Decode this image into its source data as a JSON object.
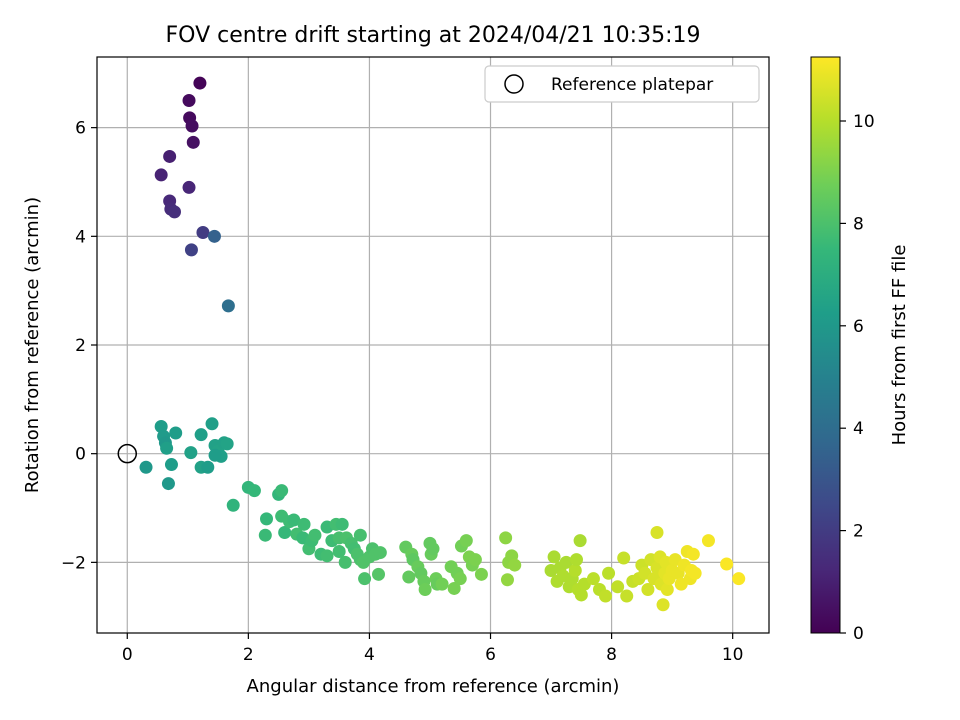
{
  "chart_data": {
    "type": "scatter",
    "title": "FOV centre drift starting at 2024/04/21 10:35:19",
    "xlabel": "Angular distance from reference (arcmin)",
    "ylabel": "Rotation from reference (arcmin)",
    "xlim": [
      -0.5,
      10.6
    ],
    "ylim": [
      -3.3,
      7.3
    ],
    "xticks": [
      0,
      2,
      4,
      6,
      8,
      10
    ],
    "xtick_labels": [
      "0",
      "2",
      "4",
      "6",
      "8",
      "10"
    ],
    "yticks": [
      -2,
      0,
      2,
      4,
      6
    ],
    "ytick_labels": [
      "−2",
      "0",
      "2",
      "4",
      "6"
    ],
    "grid": true,
    "legend": {
      "placement": "top-right",
      "entries": [
        "Reference platepar"
      ]
    },
    "reference_point": {
      "x": 0,
      "y": 0,
      "label": "Reference platepar"
    },
    "colorbar": {
      "label": "Hours from first FF file",
      "range": [
        0,
        11.25
      ],
      "ticks": [
        0,
        2,
        4,
        6,
        8,
        10
      ],
      "tick_labels": [
        "0",
        "2",
        "4",
        "6",
        "8",
        "10"
      ],
      "colormap": "viridis",
      "colors": [
        "#440154",
        "#482878",
        "#3e4989",
        "#31688e",
        "#26828e",
        "#1f9e89",
        "#35b779",
        "#6ece58",
        "#b5de2b",
        "#fde725"
      ]
    },
    "points": [
      [
        1.2,
        6.82,
        0.1
      ],
      [
        1.02,
        6.5,
        0.3
      ],
      [
        1.03,
        6.18,
        0.3
      ],
      [
        1.07,
        6.03,
        0.4
      ],
      [
        1.09,
        5.73,
        0.5
      ],
      [
        0.7,
        5.47,
        1.0
      ],
      [
        0.56,
        5.13,
        1.1
      ],
      [
        1.02,
        4.9,
        1.2
      ],
      [
        0.7,
        4.65,
        1.3
      ],
      [
        0.72,
        4.5,
        1.4
      ],
      [
        0.78,
        4.45,
        1.5
      ],
      [
        1.25,
        4.07,
        2.0
      ],
      [
        1.44,
        4.0,
        3.5
      ],
      [
        1.06,
        3.75,
        2.2
      ],
      [
        1.67,
        2.72,
        4.1
      ],
      [
        0.56,
        0.5,
        6.2
      ],
      [
        0.6,
        0.32,
        6.1
      ],
      [
        0.63,
        0.2,
        6.0
      ],
      [
        0.65,
        0.1,
        6.3
      ],
      [
        0.8,
        0.38,
        6.2
      ],
      [
        0.68,
        -0.55,
        6.0
      ],
      [
        0.73,
        -0.2,
        6.2
      ],
      [
        0.31,
        -0.25,
        6.0
      ],
      [
        1.05,
        0.02,
        6.4
      ],
      [
        1.22,
        0.35,
        6.3
      ],
      [
        1.22,
        -0.25,
        6.4
      ],
      [
        1.33,
        -0.25,
        6.2
      ],
      [
        1.4,
        0.55,
        6.3
      ],
      [
        1.45,
        0.15,
        6.4
      ],
      [
        1.5,
        0.05,
        6.5
      ],
      [
        1.55,
        -0.05,
        6.3
      ],
      [
        1.6,
        0.2,
        6.4
      ],
      [
        1.65,
        0.18,
        6.5
      ],
      [
        1.45,
        -0.03,
        6.2
      ],
      [
        1.75,
        -0.95,
        7.3
      ],
      [
        2.0,
        -0.62,
        7.4
      ],
      [
        2.1,
        -0.68,
        7.5
      ],
      [
        2.3,
        -1.2,
        7.5
      ],
      [
        2.28,
        -1.5,
        7.6
      ],
      [
        2.5,
        -0.75,
        7.4
      ],
      [
        2.55,
        -0.68,
        7.6
      ],
      [
        2.55,
        -1.15,
        7.7
      ],
      [
        2.6,
        -1.45,
        7.5
      ],
      [
        2.68,
        -1.25,
        7.7
      ],
      [
        2.75,
        -1.22,
        7.6
      ],
      [
        2.8,
        -1.48,
        7.8
      ],
      [
        2.9,
        -1.55,
        7.6
      ],
      [
        2.92,
        -1.3,
        7.7
      ],
      [
        3.0,
        -1.75,
        7.8
      ],
      [
        3.05,
        -1.6,
        7.7
      ],
      [
        3.1,
        -1.5,
        7.8
      ],
      [
        3.2,
        -1.85,
        7.7
      ],
      [
        3.3,
        -1.88,
        7.8
      ],
      [
        3.3,
        -1.35,
        7.6
      ],
      [
        3.38,
        -1.6,
        7.7
      ],
      [
        3.45,
        -1.3,
        7.8
      ],
      [
        3.5,
        -1.55,
        7.9
      ],
      [
        3.55,
        -1.3,
        7.7
      ],
      [
        3.5,
        -1.8,
        7.8
      ],
      [
        3.6,
        -2.0,
        7.9
      ],
      [
        3.62,
        -1.55,
        8.0
      ],
      [
        3.7,
        -1.65,
        7.9
      ],
      [
        3.75,
        -1.75,
        7.8
      ],
      [
        3.8,
        -1.85,
        8.0
      ],
      [
        3.85,
        -1.5,
        7.9
      ],
      [
        3.85,
        -1.95,
        8.0
      ],
      [
        3.9,
        -2.0,
        8.1
      ],
      [
        3.92,
        -2.3,
        8.0
      ],
      [
        4.0,
        -1.9,
        8.1
      ],
      [
        4.05,
        -1.75,
        8.0
      ],
      [
        4.1,
        -1.85,
        8.1
      ],
      [
        4.15,
        -2.22,
        8.2
      ],
      [
        4.18,
        -1.82,
        8.1
      ],
      [
        4.6,
        -1.72,
        8.5
      ],
      [
        4.65,
        -2.27,
        8.5
      ],
      [
        4.7,
        -1.85,
        8.6
      ],
      [
        4.72,
        -1.95,
        8.4
      ],
      [
        4.8,
        -2.08,
        8.6
      ],
      [
        4.85,
        -2.2,
        8.5
      ],
      [
        4.9,
        -2.35,
        8.6
      ],
      [
        4.92,
        -2.5,
        8.7
      ],
      [
        5.0,
        -1.65,
        8.5
      ],
      [
        5.02,
        -1.85,
        8.6
      ],
      [
        5.05,
        -1.75,
        8.5
      ],
      [
        5.1,
        -2.3,
        8.7
      ],
      [
        5.12,
        -2.4,
        8.6
      ],
      [
        5.2,
        -2.4,
        8.8
      ],
      [
        5.35,
        -2.08,
        8.8
      ],
      [
        5.4,
        -2.48,
        8.9
      ],
      [
        5.45,
        -2.2,
        8.8
      ],
      [
        5.5,
        -2.3,
        8.9
      ],
      [
        5.52,
        -1.7,
        8.8
      ],
      [
        5.6,
        -1.6,
        8.9
      ],
      [
        5.65,
        -1.9,
        9.0
      ],
      [
        5.7,
        -2.05,
        8.9
      ],
      [
        5.75,
        -1.95,
        9.0
      ],
      [
        5.85,
        -2.22,
        9.0
      ],
      [
        6.25,
        -1.55,
        9.3
      ],
      [
        6.3,
        -2.0,
        9.3
      ],
      [
        6.28,
        -2.32,
        9.4
      ],
      [
        6.35,
        -1.88,
        9.3
      ],
      [
        6.4,
        -2.05,
        9.4
      ],
      [
        7.0,
        -2.15,
        9.8
      ],
      [
        7.05,
        -1.9,
        9.8
      ],
      [
        7.1,
        -2.35,
        9.9
      ],
      [
        7.15,
        -2.1,
        9.8
      ],
      [
        7.2,
        -2.25,
        9.9
      ],
      [
        7.25,
        -2.0,
        9.8
      ],
      [
        7.3,
        -2.45,
        9.9
      ],
      [
        7.35,
        -2.3,
        9.9
      ],
      [
        7.4,
        -2.15,
        10.0
      ],
      [
        7.42,
        -1.95,
        9.9
      ],
      [
        7.45,
        -2.5,
        10.0
      ],
      [
        7.48,
        -1.6,
        9.8
      ],
      [
        7.5,
        -2.6,
        10.0
      ],
      [
        7.55,
        -2.4,
        10.0
      ],
      [
        7.7,
        -2.3,
        10.1
      ],
      [
        7.8,
        -2.5,
        10.1
      ],
      [
        7.9,
        -2.62,
        10.2
      ],
      [
        7.95,
        -2.2,
        10.1
      ],
      [
        8.1,
        -2.45,
        10.2
      ],
      [
        8.2,
        -1.92,
        10.3
      ],
      [
        8.25,
        -2.62,
        10.3
      ],
      [
        8.35,
        -2.35,
        10.3
      ],
      [
        8.45,
        -2.3,
        10.4
      ],
      [
        8.5,
        -2.05,
        10.4
      ],
      [
        8.55,
        -2.2,
        10.5
      ],
      [
        8.6,
        -2.5,
        10.5
      ],
      [
        8.65,
        -1.95,
        10.5
      ],
      [
        8.7,
        -2.3,
        10.6
      ],
      [
        8.75,
        -1.45,
        10.6
      ],
      [
        8.75,
        -2.1,
        10.6
      ],
      [
        8.8,
        -1.9,
        10.7
      ],
      [
        8.82,
        -2.4,
        10.7
      ],
      [
        8.85,
        -2.78,
        10.7
      ],
      [
        8.88,
        -2.2,
        10.8
      ],
      [
        8.9,
        -2.0,
        10.8
      ],
      [
        8.92,
        -2.5,
        10.8
      ],
      [
        8.95,
        -2.3,
        10.9
      ],
      [
        9.0,
        -2.15,
        10.9
      ],
      [
        9.05,
        -1.95,
        10.9
      ],
      [
        9.1,
        -2.2,
        10.9
      ],
      [
        9.15,
        -2.4,
        11.0
      ],
      [
        9.2,
        -2.05,
        11.0
      ],
      [
        9.25,
        -1.8,
        11.0
      ],
      [
        9.3,
        -2.3,
        11.0
      ],
      [
        9.32,
        -2.15,
        11.1
      ],
      [
        9.35,
        -1.85,
        11.1
      ],
      [
        9.38,
        -2.2,
        11.1
      ],
      [
        9.6,
        -1.6,
        11.1
      ],
      [
        9.9,
        -2.03,
        11.2
      ],
      [
        10.1,
        -2.3,
        11.2
      ]
    ]
  }
}
